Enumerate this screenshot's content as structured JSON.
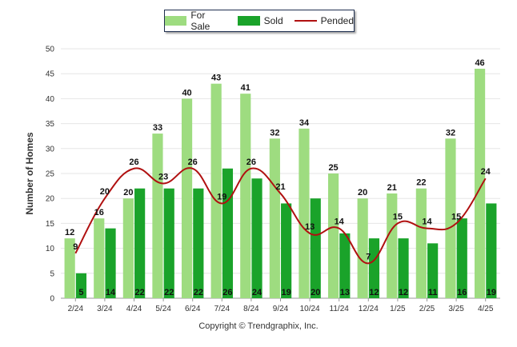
{
  "chart_data": {
    "type": "bar",
    "ylabel": "Number of Homes",
    "ylim": [
      0,
      50
    ],
    "yticks": [
      "0",
      "5",
      "10",
      "15",
      "20",
      "25",
      "30",
      "35",
      "40",
      "45",
      "50"
    ],
    "categories": [
      "2/24",
      "3/24",
      "4/24",
      "5/24",
      "6/24",
      "7/24",
      "8/24",
      "9/24",
      "10/24",
      "11/24",
      "12/24",
      "1/25",
      "2/25",
      "3/25",
      "4/25"
    ],
    "series": [
      {
        "name": "For Sale",
        "kind": "bar",
        "color": "#9edc80",
        "values": [
          12,
          16,
          20,
          33,
          40,
          43,
          41,
          32,
          34,
          25,
          20,
          21,
          22,
          32,
          46
        ]
      },
      {
        "name": "Sold",
        "kind": "bar",
        "color": "#1aa32a",
        "values": [
          5,
          14,
          22,
          22,
          22,
          26,
          24,
          19,
          20,
          13,
          12,
          12,
          11,
          16,
          19
        ]
      },
      {
        "name": "Pended",
        "kind": "line",
        "color": "#b01010",
        "values": [
          9,
          20,
          26,
          23,
          26,
          19,
          26,
          21,
          13,
          14,
          7,
          15,
          14,
          15,
          24
        ]
      }
    ],
    "grid": true,
    "legend_position": "top-center"
  },
  "footer": {
    "copyright": "Copyright © Trendgraphix, Inc."
  }
}
